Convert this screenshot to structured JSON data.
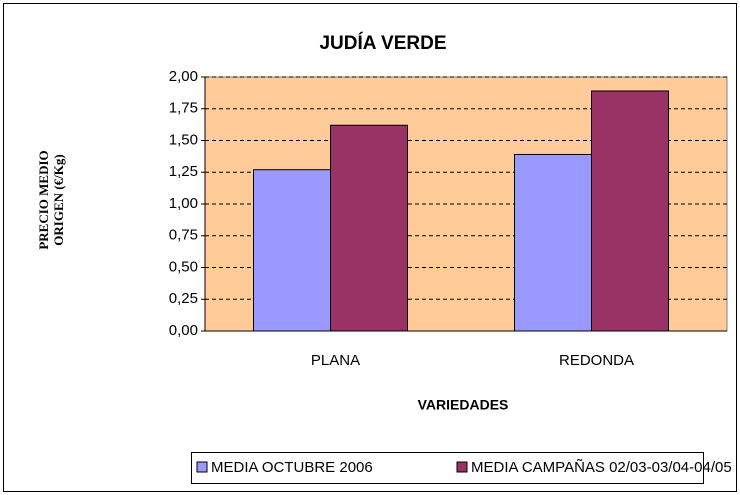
{
  "chart_data": {
    "type": "bar",
    "title": "JUDÍA VERDE",
    "y_label": [
      "PRECIO MEDIO",
      "ORIGEN (€/Kg)"
    ],
    "x_label": "VARIEDADES",
    "categories": [
      "PLANA",
      "REDONDA"
    ],
    "series": [
      {
        "name": "MEDIA OCTUBRE 2006",
        "color": "#9999FF",
        "values": [
          1.27,
          1.39
        ]
      },
      {
        "name": "MEDIA CAMPAÑAS 02/03-03/04-04/05",
        "color": "#993366",
        "values": [
          1.62,
          1.89
        ]
      }
    ],
    "ylim": [
      0,
      2
    ],
    "yticks": [
      {
        "value": 0,
        "label": "0,00"
      },
      {
        "value": 0.25,
        "label": "0,25"
      },
      {
        "value": 0.5,
        "label": "0,50"
      },
      {
        "value": 0.75,
        "label": "0,75"
      },
      {
        "value": 1,
        "label": "1,00"
      },
      {
        "value": 1.25,
        "label": "1,25"
      },
      {
        "value": 1.5,
        "label": "1,50"
      },
      {
        "value": 1.75,
        "label": "1,75"
      },
      {
        "value": 2,
        "label": "2,00"
      }
    ],
    "grid": true,
    "plot_background": "#FFCC99",
    "legend": "bottom"
  }
}
